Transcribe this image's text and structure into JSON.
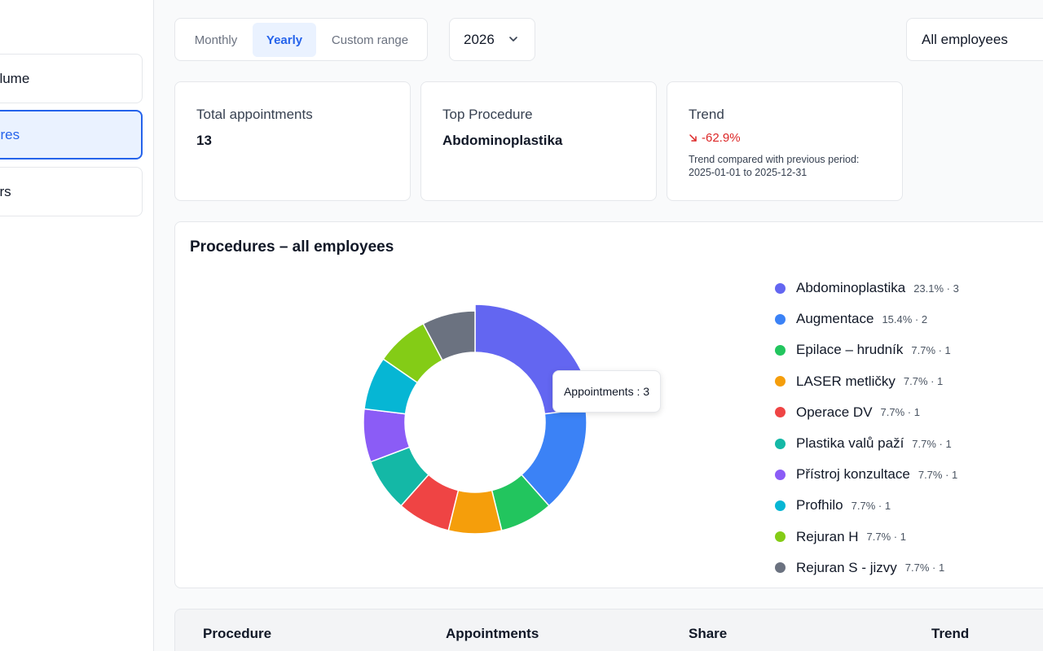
{
  "sidebar": {
    "items": [
      {
        "label": "olume"
      },
      {
        "label": "ures"
      },
      {
        "label": "ors"
      }
    ]
  },
  "filters": {
    "period_tabs": [
      {
        "label": "Monthly"
      },
      {
        "label": "Yearly"
      },
      {
        "label": "Custom range"
      }
    ],
    "year": "2026",
    "employees": "All employees"
  },
  "stats": {
    "total_label": "Total appointments",
    "total_value": "13",
    "top_label": "Top Procedure",
    "top_value": "Abdominoplastika",
    "trend_label": "Trend",
    "trend_value": "-62.9%",
    "trend_note_line1": "Trend compared with previous period:",
    "trend_note_line2": "2025-01-01 to 2025-12-31"
  },
  "chart": {
    "title": "Procedures – all employees",
    "tooltip": "Appointments : 3",
    "legend": [
      {
        "name": "Abdominoplastika",
        "meta": "23.1% · 3",
        "color": "#6366f1"
      },
      {
        "name": "Augmentace",
        "meta": "15.4% · 2",
        "color": "#3b82f6"
      },
      {
        "name": "Epilace – hrudník",
        "meta": "7.7% · 1",
        "color": "#22c55e"
      },
      {
        "name": "LASER metličky",
        "meta": "7.7% · 1",
        "color": "#f59e0b"
      },
      {
        "name": "Operace DV",
        "meta": "7.7% · 1",
        "color": "#ef4444"
      },
      {
        "name": "Plastika valů paží",
        "meta": "7.7% · 1",
        "color": "#14b8a6"
      },
      {
        "name": "Přístroj konzultace",
        "meta": "7.7% · 1",
        "color": "#8b5cf6"
      },
      {
        "name": "Profhilo",
        "meta": "7.7% · 1",
        "color": "#06b6d4"
      },
      {
        "name": "Rejuran H",
        "meta": "7.7% · 1",
        "color": "#84cc16"
      },
      {
        "name": "Rejuran S - jizvy",
        "meta": "7.7% · 1",
        "color": "#6b7280"
      }
    ]
  },
  "chart_data": {
    "type": "pie",
    "categories": [
      "Abdominoplastika",
      "Augmentace",
      "Epilace – hrudník",
      "LASER metličky",
      "Operace DV",
      "Plastika valů paží",
      "Přístroj konzultace",
      "Profhilo",
      "Rejuran H",
      "Rejuran S - jizvy"
    ],
    "values": [
      3,
      2,
      1,
      1,
      1,
      1,
      1,
      1,
      1,
      1
    ],
    "colors": [
      "#6366f1",
      "#3b82f6",
      "#22c55e",
      "#f59e0b",
      "#ef4444",
      "#14b8a6",
      "#8b5cf6",
      "#06b6d4",
      "#84cc16",
      "#6b7280"
    ],
    "title": "Procedures – all employees",
    "legend": "right",
    "highlighted": "Abdominoplastika"
  },
  "table": {
    "headers": [
      "Procedure",
      "Appointments",
      "Share",
      "Trend"
    ]
  }
}
